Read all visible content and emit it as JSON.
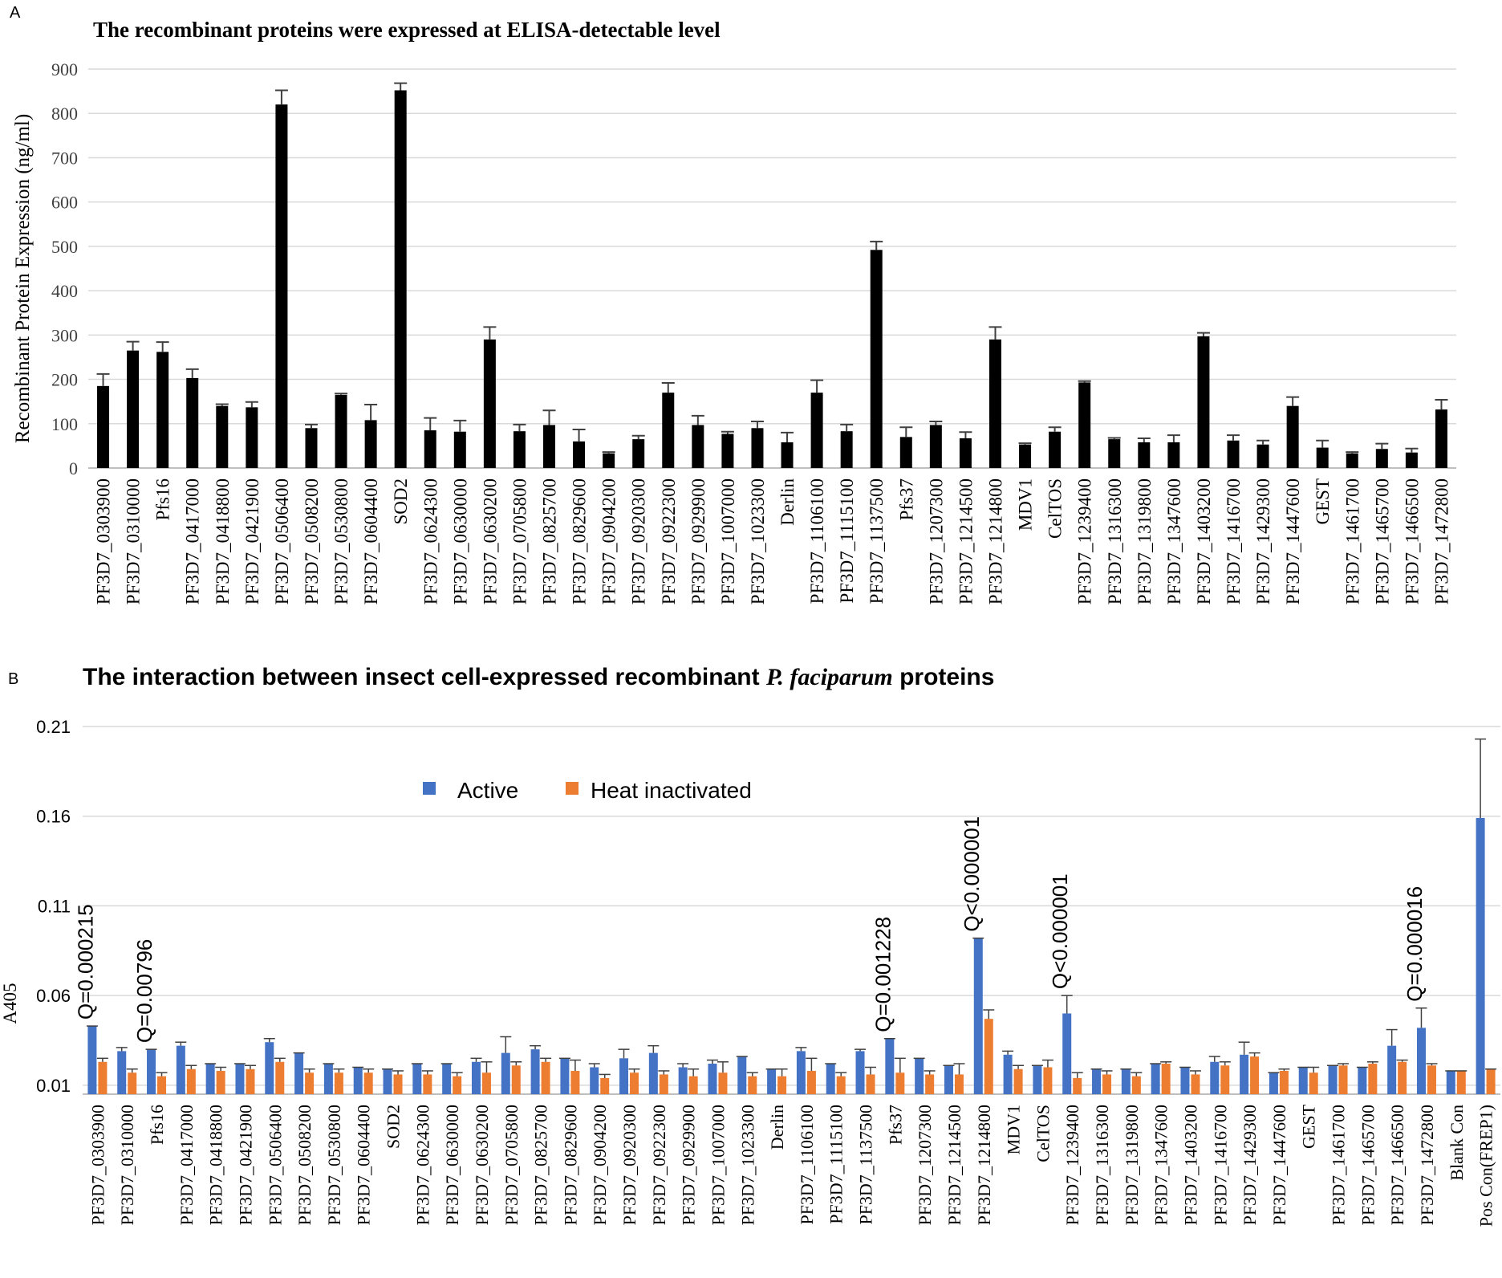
{
  "chart_data": [
    {
      "panel": "A",
      "type": "bar",
      "title": "The recombinant proteins were expressed  at ELISA-detectable level",
      "xlabel": "",
      "ylabel": "Recombinant Protein Expression (ng/ml)",
      "ylim": [
        0,
        900
      ],
      "yticks": [
        0,
        100,
        200,
        300,
        400,
        500,
        600,
        700,
        800,
        900
      ],
      "grid": true,
      "colors": {
        "bar": "#000000",
        "grid": "#d9d9d9",
        "axis": "#bfbfbf"
      },
      "categories": [
        "PF3D7_0303900",
        "PF3D7_0310000",
        "Pfs16",
        "PF3D7_0417000",
        "PF3D7_0418800",
        "PF3D7_0421900",
        "PF3D7_0506400",
        "PF3D7_0508200",
        "PF3D7_0530800",
        "PF3D7_0604400",
        "SOD2",
        "PF3D7_0624300",
        "PF3D7_0630000",
        "PF3D7_0630200",
        "PF3D7_0705800",
        "PF3D7_0825700",
        "PF3D7_0829600",
        "PF3D7_0904200",
        "PF3D7_0920300",
        "PF3D7_0922300",
        "PF3D7_0929900",
        "PF3D7_1007000",
        "PF3D7_1023300",
        "Derlin",
        "PF3D7_1106100",
        "PF3D7_1115100",
        "PF3D7_1137500",
        "Pfs37",
        "PF3D7_1207300",
        "PF3D7_1214500",
        "PF3D7_1214800",
        "MDV1",
        "CelTOS",
        "PF3D7_1239400",
        "PF3D7_1316300",
        "PF3D7_1319800",
        "PF3D7_1347600",
        "PF3D7_1403200",
        "PF3D7_1416700",
        "PF3D7_1429300",
        "PF3D7_1447600",
        "GEST",
        "PF3D7_1461700",
        "PF3D7_1465700",
        "PF3D7_1466500",
        "PF3D7_1472800"
      ],
      "values": [
        185,
        265,
        262,
        203,
        140,
        137,
        820,
        90,
        165,
        108,
        852,
        85,
        82,
        290,
        83,
        97,
        60,
        33,
        65,
        170,
        97,
        77,
        90,
        58,
        170,
        83,
        492,
        70,
        97,
        67,
        290,
        53,
        82,
        193,
        65,
        58,
        58,
        297,
        62,
        53,
        140,
        46,
        33,
        43,
        35,
        132
      ],
      "errors": [
        27,
        20,
        22,
        20,
        4,
        12,
        32,
        8,
        3,
        35,
        16,
        28,
        25,
        28,
        15,
        33,
        27,
        3,
        8,
        22,
        21,
        5,
        15,
        22,
        28,
        15,
        19,
        22,
        8,
        14,
        28,
        3,
        10,
        3,
        3,
        9,
        16,
        8,
        12,
        9,
        20,
        16,
        3,
        12,
        9,
        22
      ]
    },
    {
      "panel": "B",
      "type": "bar",
      "title_parts": [
        "The interaction between insect cell-expressed recombinant ",
        "P. faciparum",
        " proteins"
      ],
      "xlabel": "",
      "ylabel": "A405",
      "ylim": [
        0.005,
        0.21
      ],
      "yticks": [
        0.01,
        0.06,
        0.11,
        0.16,
        0.21
      ],
      "grid": true,
      "legend_position": "top-center",
      "colors": {
        "active": "#4472c4",
        "heat": "#ed7d31",
        "grid": "#d9d9d9",
        "axis": "#bfbfbf",
        "error": "#404040"
      },
      "categories": [
        "PF3D7_0303900",
        "PF3D7_0310000",
        "Pfs16",
        "PF3D7_0417000",
        "PF3D7_0418800",
        "PF3D7_0421900",
        "PF3D7_0506400",
        "PF3D7_0508200",
        "PF3D7_0530800",
        "PF3D7_0604400",
        "SOD2",
        "PF3D7_0624300",
        "PF3D7_0630000",
        "PF3D7_0630200",
        "PF3D7_0705800",
        "PF3D7_0825700",
        "PF3D7_0829600",
        "PF3D7_0904200",
        "PF3D7_0920300",
        "PF3D7_0922300",
        "PF3D7_0929900",
        "PF3D7_1007000",
        "PF3D7_1023300",
        "Derlin",
        "PF3D7_1106100",
        "PF3D7_1115100",
        "PF3D7_1137500",
        "Pfs37",
        "PF3D7_1207300",
        "PF3D7_1214500",
        "PF3D7_1214800",
        "MDV1",
        "CelTOS",
        "PF3D7_1239400",
        "PF3D7_1316300",
        "PF3D7_1319800",
        "PF3D7_1347600",
        "PF3D7_1403200",
        "PF3D7_1416700",
        "PF3D7_1429300",
        "PF3D7_1447600",
        "GEST",
        "PF3D7_1461700",
        "PF3D7_1465700",
        "PF3D7_1466500",
        "PF3D7_1472800",
        "Blank Con",
        "Pos Con(FREP1)"
      ],
      "series": [
        {
          "name": "Active",
          "values": [
            0.043,
            0.029,
            0.03,
            0.032,
            0.022,
            0.022,
            0.034,
            0.028,
            0.022,
            0.02,
            0.019,
            0.022,
            0.022,
            0.023,
            0.028,
            0.03,
            0.025,
            0.02,
            0.025,
            0.028,
            0.02,
            0.022,
            0.026,
            0.019,
            0.029,
            0.022,
            0.029,
            0.036,
            0.025,
            0.021,
            0.092,
            0.027,
            0.021,
            0.05,
            0.019,
            0.019,
            0.022,
            0.02,
            0.023,
            0.027,
            0.017,
            0.02,
            0.021,
            0.02,
            0.032,
            0.042,
            0.018,
            0.159
          ],
          "errors": [
            0.0,
            0.002,
            0.0,
            0.002,
            0.0,
            0.0,
            0.002,
            0.0,
            0.0,
            0.0,
            0.0,
            0.0,
            0.0,
            0.002,
            0.009,
            0.002,
            0.0,
            0.002,
            0.005,
            0.004,
            0.002,
            0.002,
            0.0,
            0.0,
            0.002,
            0.0,
            0.001,
            0.0,
            0.0,
            0.0,
            0.0,
            0.002,
            0.0,
            0.01,
            0.0,
            0.0,
            0.0,
            0.0,
            0.003,
            0.007,
            0.0,
            0.0,
            0.0,
            0.0,
            0.009,
            0.011,
            0.0,
            0.044
          ]
        },
        {
          "name": "Heat inactivated",
          "values": [
            0.023,
            0.017,
            0.015,
            0.019,
            0.018,
            0.019,
            0.023,
            0.017,
            0.017,
            0.017,
            0.016,
            0.016,
            0.015,
            0.017,
            0.021,
            0.023,
            0.018,
            0.014,
            0.017,
            0.016,
            0.015,
            0.017,
            0.015,
            0.015,
            0.018,
            0.015,
            0.016,
            0.017,
            0.016,
            0.016,
            0.047,
            0.019,
            0.02,
            0.014,
            0.016,
            0.015,
            0.022,
            0.016,
            0.021,
            0.026,
            0.018,
            0.017,
            0.021,
            0.022,
            0.023,
            0.021,
            0.018,
            0.019
          ],
          "errors": [
            0.002,
            0.002,
            0.002,
            0.002,
            0.002,
            0.002,
            0.002,
            0.002,
            0.002,
            0.002,
            0.002,
            0.002,
            0.002,
            0.006,
            0.002,
            0.002,
            0.006,
            0.002,
            0.002,
            0.002,
            0.004,
            0.006,
            0.002,
            0.004,
            0.007,
            0.002,
            0.004,
            0.008,
            0.002,
            0.006,
            0.005,
            0.002,
            0.004,
            0.003,
            0.002,
            0.002,
            0.001,
            0.002,
            0.002,
            0.002,
            0.001,
            0.003,
            0.001,
            0.001,
            0.001,
            0.001,
            0.0,
            0.0
          ]
        }
      ],
      "annotations": [
        {
          "category": "PF3D7_0303900",
          "text": "Q=0.000215"
        },
        {
          "category": "Pfs16",
          "text": "Q=0.00796"
        },
        {
          "category": "Pfs37",
          "text": "Q=0.001228"
        },
        {
          "category": "PF3D7_1214800",
          "text": "Q<0.000001"
        },
        {
          "category": "PF3D7_1239400",
          "text": "Q<0.000001"
        },
        {
          "category": "PF3D7_1472800",
          "text": "Q=0.000016"
        }
      ]
    }
  ]
}
